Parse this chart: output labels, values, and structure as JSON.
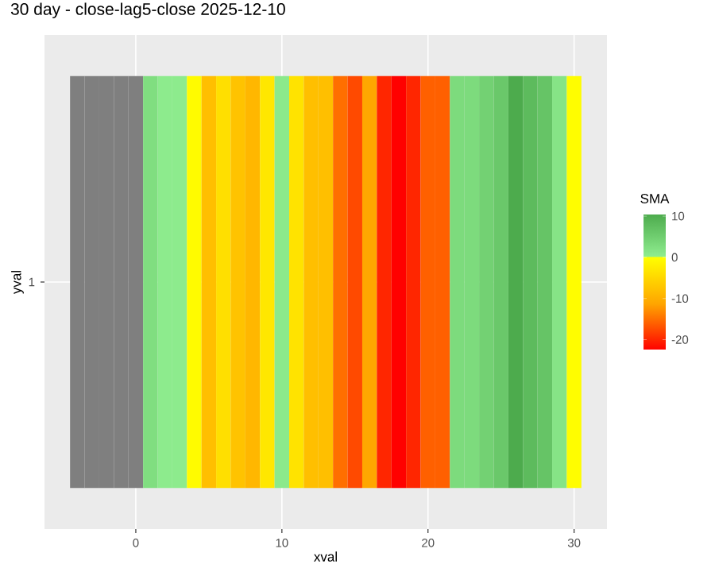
{
  "chart_data": {
    "type": "heatmap",
    "title": "30 day - close-lag5-close  2025-12-10",
    "xlabel": "xval",
    "ylabel": "yval",
    "clabel": "SMA",
    "x": [
      -4,
      -3,
      -2,
      -1,
      0,
      1,
      2,
      3,
      4,
      5,
      6,
      7,
      8,
      9,
      10,
      11,
      12,
      13,
      14,
      15,
      16,
      17,
      18,
      19,
      20,
      21,
      22,
      23,
      24,
      25,
      26,
      27,
      28,
      29,
      30
    ],
    "y_categories": [
      "1"
    ],
    "cells": [
      [
        null,
        null,
        null,
        null,
        null,
        2.5,
        0.5,
        0.5,
        -0.5,
        -8,
        -4,
        -7.5,
        -9,
        -3,
        0.8,
        -3.5,
        -8,
        -8,
        -15,
        -17.5,
        -11,
        -20,
        -22.5,
        -20,
        -16,
        -16,
        3,
        3,
        4.5,
        6,
        10.5,
        8,
        6.5,
        1.5,
        -0.3
      ]
    ],
    "xlim": [
      -6.25,
      32.25
    ],
    "xticks": [
      0,
      10,
      20,
      30
    ],
    "clim": [
      -22.6,
      10.6
    ],
    "cticks": [
      -20,
      -10,
      0,
      10
    ],
    "grid": true
  }
}
